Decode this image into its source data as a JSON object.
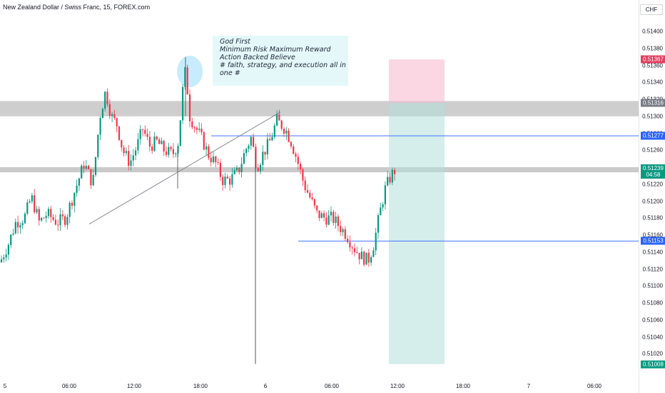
{
  "header": {
    "symbol_title": "New Zealand Dollar / Swiss Franc, 15, FOREX.com"
  },
  "annotation": {
    "lines": [
      "God First",
      "Minimum Risk Maximum Reward",
      "Action Backed Believe",
      "",
      "# faith, strategy, and execution all in one #"
    ]
  },
  "price_axis": {
    "currency": "CHF",
    "ticks": [
      "0.51400",
      "0.51380",
      "0.51360",
      "0.51340",
      "0.51320",
      "0.51300",
      "0.51280",
      "0.51260",
      "0.51240",
      "0.51220",
      "0.51200",
      "0.51180",
      "0.51160",
      "0.51140",
      "0.51120",
      "0.51100",
      "0.51080",
      "0.51060",
      "0.51040",
      "0.51020"
    ],
    "labels": [
      {
        "text": "0.51367",
        "color": "#e53e61",
        "sub": ""
      },
      {
        "text": "0.51316",
        "color": "#787b86",
        "sub": ""
      },
      {
        "text": "0.51277",
        "color": "#2962ff",
        "sub": ""
      },
      {
        "text": "0.51239",
        "color": "#089981",
        "sub": "04:58"
      },
      {
        "text": "0.51153",
        "color": "#2962ff",
        "sub": ""
      },
      {
        "text": "0.51008",
        "color": "#089981",
        "sub": ""
      }
    ]
  },
  "time_axis": {
    "ticks": [
      "5",
      "06:00",
      "12:00",
      "18:00",
      "6",
      "06:00",
      "12:00",
      "18:00",
      "7",
      "06:00"
    ]
  },
  "colors": {
    "up": "#089981",
    "down": "#f23645",
    "level_line": "#2962ff",
    "zone": "#9e9e9e",
    "stop_zone": "#f8bbd0",
    "target_zone": "#b2dfdb",
    "highlight_ellipse": "#b3e5fc"
  }
}
